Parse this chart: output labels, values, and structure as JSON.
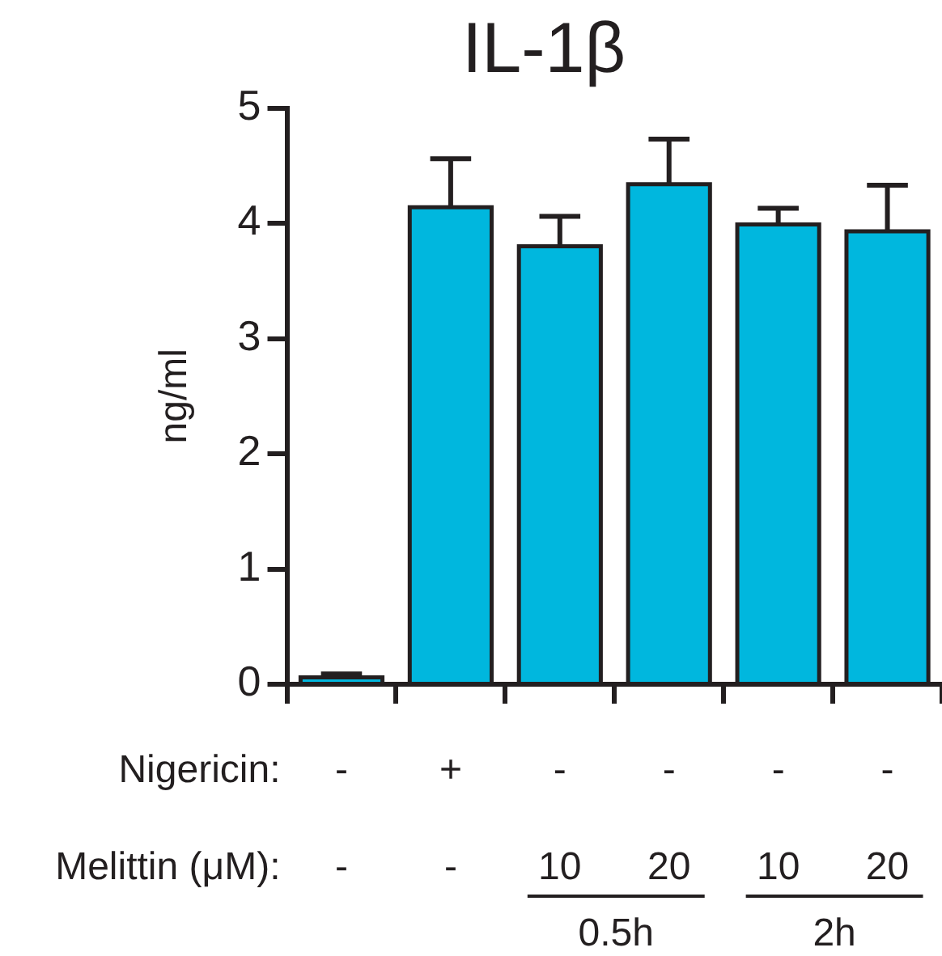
{
  "chart_data": {
    "type": "bar",
    "title": "IL-1β",
    "ylabel": "ng/ml",
    "categories": [
      "-\n-",
      "+\n-",
      "-\n10",
      "-\n20",
      "-\n10",
      "-\n20"
    ],
    "values": [
      0.06,
      4.14,
      3.8,
      4.34,
      3.99,
      3.93
    ],
    "errors": [
      0.03,
      0.42,
      0.26,
      0.39,
      0.14,
      0.4
    ],
    "color": "#00b7de",
    "ylim": [
      0,
      5
    ],
    "yticks": [
      0,
      1,
      2,
      3,
      4,
      5
    ],
    "grid": false,
    "legend": false,
    "annotations": [
      "Nigericin:",
      "Melittin (μM):",
      "0.5h",
      "2h"
    ]
  }
}
